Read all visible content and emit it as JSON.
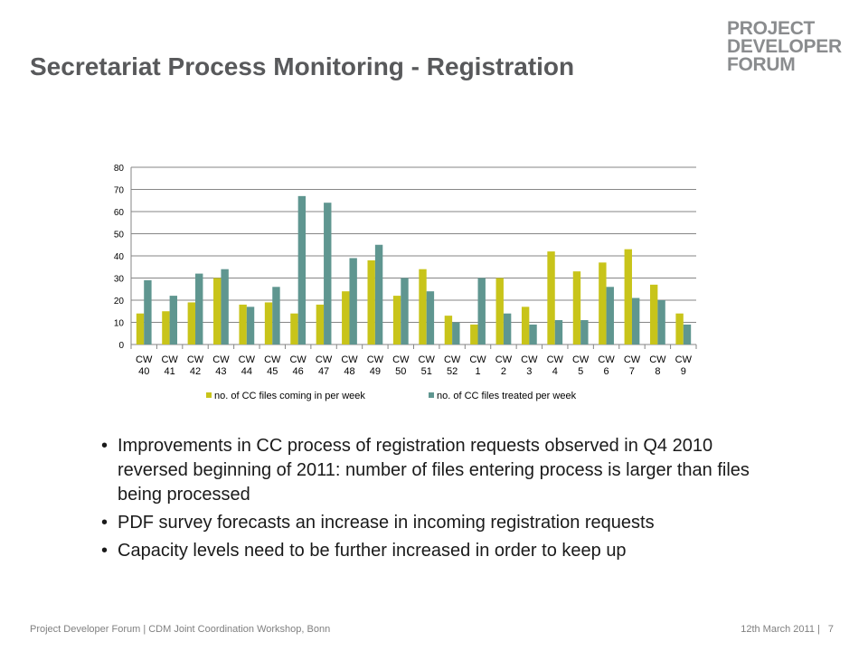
{
  "slide": {
    "title": "Secretariat Process Monitoring - Registration",
    "logo": [
      "PROJECT",
      "DEVELOPER",
      "FORUM"
    ],
    "bullets": [
      "Improvements in CC process of registration requests observed in Q4 2010 reversed beginning of 2011: number of files entering process is larger than files being processed",
      "PDF survey forecasts an increase in incoming registration requests",
      "Capacity levels need to be further increased in order to keep up"
    ],
    "footer_left": "Project Developer Forum | CDM Joint Coordination Workshop, Bonn",
    "footer_date": "12th March 2011 |",
    "page_number": "7",
    "colors": {
      "title": "#58595b",
      "logo": "#8a8c8e",
      "footer": "#808080"
    }
  },
  "chart_data": {
    "type": "bar",
    "title": "",
    "xlabel": "",
    "ylabel": "",
    "ylim": [
      0,
      80
    ],
    "yticks": [
      0,
      10,
      20,
      30,
      40,
      50,
      60,
      70,
      80
    ],
    "grid": true,
    "legend_position": "bottom",
    "categories": [
      [
        "CW",
        "40"
      ],
      [
        "CW",
        "41"
      ],
      [
        "CW",
        "42"
      ],
      [
        "CW",
        "43"
      ],
      [
        "CW",
        "44"
      ],
      [
        "CW",
        "45"
      ],
      [
        "CW",
        "46"
      ],
      [
        "CW",
        "47"
      ],
      [
        "CW",
        "48"
      ],
      [
        "CW",
        "49"
      ],
      [
        "CW",
        "50"
      ],
      [
        "CW",
        "51"
      ],
      [
        "CW",
        "52"
      ],
      [
        "CW",
        "1"
      ],
      [
        "CW",
        "2"
      ],
      [
        "CW",
        "3"
      ],
      [
        "CW",
        "4"
      ],
      [
        "CW",
        "5"
      ],
      [
        "CW",
        "6"
      ],
      [
        "CW",
        "7"
      ],
      [
        "CW",
        "8"
      ],
      [
        "CW",
        "9"
      ]
    ],
    "series": [
      {
        "name": "no. of CC files coming in per week",
        "color": "#c8c41a",
        "values": [
          14,
          15,
          19,
          30,
          18,
          19,
          14,
          18,
          24,
          38,
          22,
          34,
          13,
          9,
          30,
          17,
          42,
          33,
          37,
          43,
          27,
          14
        ]
      },
      {
        "name": "no. of CC files treated per week",
        "color": "#5f9690",
        "values": [
          29,
          22,
          32,
          34,
          17,
          26,
          67,
          64,
          39,
          45,
          30,
          24,
          10,
          30,
          14,
          9,
          11,
          11,
          26,
          21,
          20,
          9
        ]
      }
    ]
  }
}
